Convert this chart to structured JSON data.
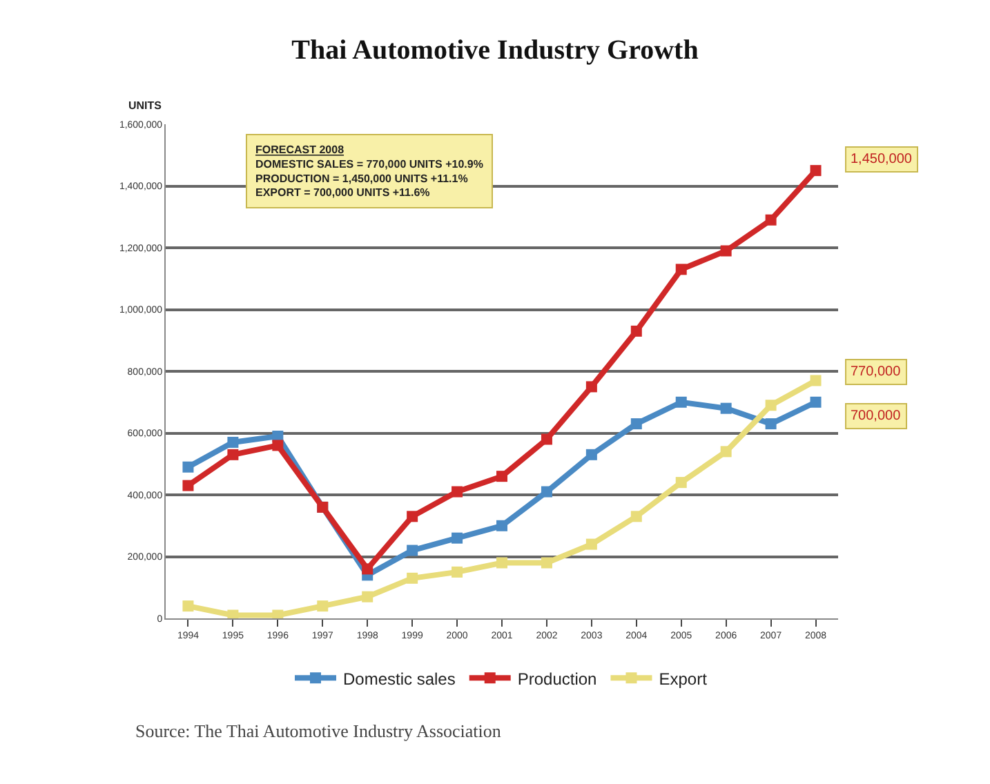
{
  "chart_data": {
    "type": "line",
    "title": "Thai Automotive Industry Growth",
    "ylabel": "UNITS",
    "x": [
      1994,
      1995,
      1996,
      1997,
      1998,
      1999,
      2000,
      2001,
      2002,
      2003,
      2004,
      2005,
      2006,
      2007,
      2008
    ],
    "xlim": [
      1993.5,
      2008.5
    ],
    "xticks": [
      1994,
      1995,
      1996,
      1997,
      1998,
      1999,
      2000,
      2001,
      2002,
      2003,
      2004,
      2005,
      2006,
      2007,
      2008
    ],
    "ylim": [
      0,
      1600000
    ],
    "yticks": [
      {
        "value": 0,
        "label": "0"
      },
      {
        "value": 200000,
        "label": "200,000"
      },
      {
        "value": 400000,
        "label": "400,000"
      },
      {
        "value": 600000,
        "label": "600,000"
      },
      {
        "value": 800000,
        "label": "800,000"
      },
      {
        "value": 1000000,
        "label": "1,000,000"
      },
      {
        "value": 1200000,
        "label": "1,200,000"
      },
      {
        "value": 1400000,
        "label": "1,400,000"
      },
      {
        "value": 1600000,
        "label": "1,600,000"
      }
    ],
    "series": [
      {
        "name": "Domestic sales",
        "color": "#4a8ac4",
        "values": [
          490000,
          570000,
          590000,
          360000,
          140000,
          220000,
          260000,
          300000,
          410000,
          530000,
          630000,
          700000,
          680000,
          630000,
          700000
        ]
      },
      {
        "name": "Production",
        "color": "#d02828",
        "values": [
          430000,
          530000,
          560000,
          360000,
          160000,
          330000,
          410000,
          460000,
          580000,
          750000,
          930000,
          1130000,
          1190000,
          1290000,
          1450000
        ]
      },
      {
        "name": "Export",
        "color": "#e8dc7a",
        "values": [
          40000,
          10000,
          10000,
          40000,
          70000,
          130000,
          150000,
          180000,
          180000,
          240000,
          330000,
          440000,
          540000,
          690000,
          770000
        ]
      }
    ],
    "annotations": [
      "FORECAST 2008\nDOMESTIC SALES = 770,000 UNITS +10.9%\nPRODUCTION = 1,450,000 UNITS +11.1%\nEXPORT = 700,000 UNITS +11.6%",
      "1,450,000",
      "770,000",
      "700,000",
      "Source: The Thai Automotive Industry Association"
    ],
    "grid": "y",
    "legend": "bottom",
    "marker": "square",
    "line_style": "solid"
  }
}
